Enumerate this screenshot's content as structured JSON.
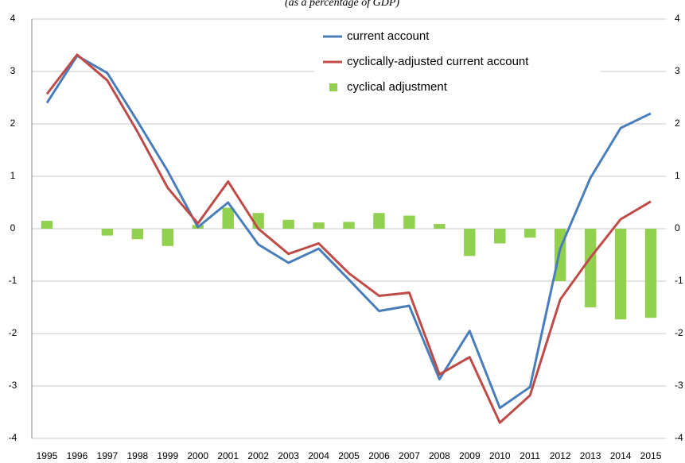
{
  "chart_data": {
    "type": "combo",
    "subtitle": "(as a percentage of GDP)",
    "categories": [
      "1995",
      "1996",
      "1997",
      "1998",
      "1999",
      "2000",
      "2001",
      "2002",
      "2003",
      "2004",
      "2005",
      "2006",
      "2007",
      "2008",
      "2009",
      "2010",
      "2011",
      "2012",
      "2013",
      "2014",
      "2015"
    ],
    "series": [
      {
        "name": "current account",
        "type": "line",
        "color": "#4a7ebb",
        "values": [
          2.4,
          3.3,
          2.97,
          2.05,
          1.1,
          0.03,
          0.5,
          -0.3,
          -0.65,
          -0.38,
          -0.97,
          -1.57,
          -1.47,
          -2.87,
          -1.95,
          -3.42,
          -3.02,
          -0.38,
          0.97,
          1.92,
          2.2
        ]
      },
      {
        "name": "cyclically-adjusted current account",
        "type": "line",
        "color": "#be4b48",
        "values": [
          2.57,
          3.32,
          2.83,
          1.85,
          0.78,
          0.1,
          0.9,
          0.0,
          -0.48,
          -0.28,
          -0.85,
          -1.28,
          -1.22,
          -2.78,
          -2.45,
          -3.7,
          -3.18,
          -1.35,
          -0.55,
          0.18,
          0.52
        ]
      },
      {
        "name": "cyclical adjustment",
        "type": "bar",
        "color": "#92d050",
        "values": [
          0.15,
          0,
          -0.13,
          -0.2,
          -0.33,
          0.07,
          0.4,
          0.3,
          0.17,
          0.12,
          0.13,
          0.3,
          0.25,
          0.09,
          -0.52,
          -0.28,
          -0.17,
          -1.0,
          -1.5,
          -1.73,
          -1.7
        ]
      }
    ],
    "ylim": [
      -4,
      4
    ],
    "yticks": [
      -4,
      -3,
      -2,
      -1,
      0,
      1,
      2,
      3,
      4
    ],
    "y2lim": [
      -4,
      4
    ],
    "y2ticks": [
      -4,
      -3,
      -2,
      -1,
      0,
      1,
      2,
      3,
      4
    ],
    "grid": true
  }
}
